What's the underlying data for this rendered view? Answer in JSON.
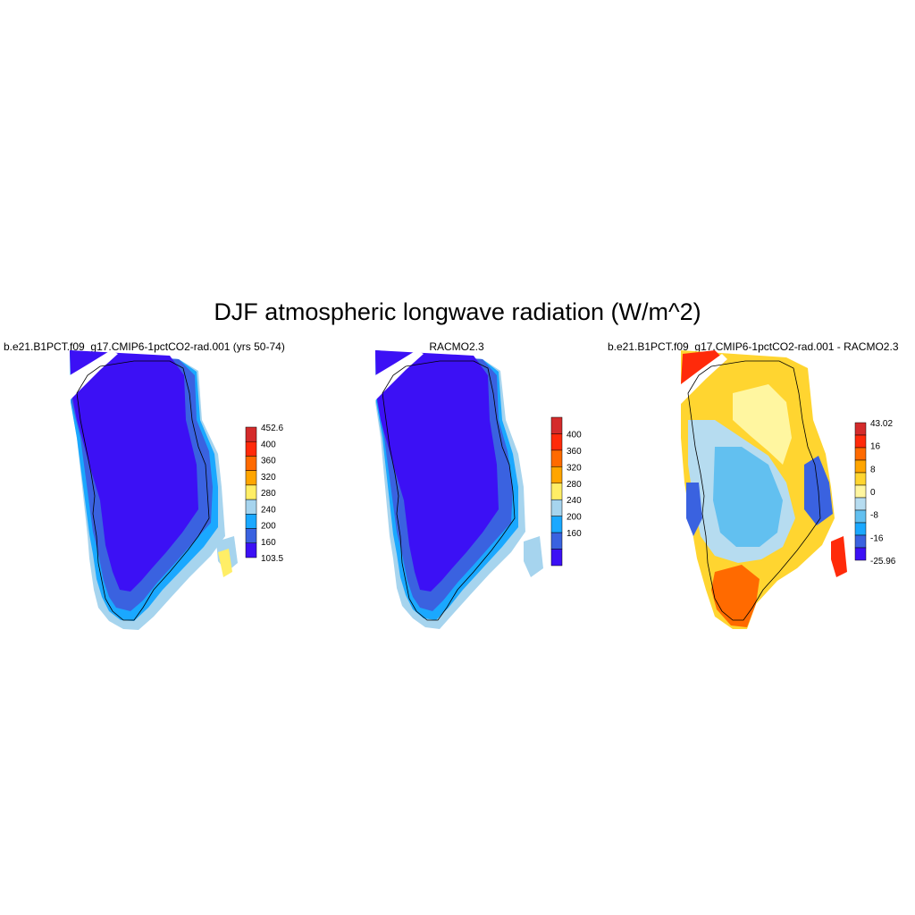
{
  "main_title": "DJF atmospheric longwave radiation (W/m^2)",
  "panels": [
    {
      "title": "b.e21.B1PCT.f09_g17.CMIP6-1pctCO2-rad.001 (yrs 50-74)",
      "colorbar": {
        "labels": [
          "452.6",
          "400",
          "360",
          "320",
          "280",
          "240",
          "200",
          "160",
          "103.5"
        ],
        "colors": [
          "#d42b2b",
          "#ff2a0a",
          "#ff6a00",
          "#ffa500",
          "#ffee66",
          "#a6d4ee",
          "#1aa8ff",
          "#3a62e0",
          "#3c10f5"
        ]
      }
    },
    {
      "title": "RACMO2.3",
      "colorbar": {
        "labels": [
          "400",
          "360",
          "320",
          "280",
          "240",
          "200",
          "160"
        ],
        "colors": [
          "#d42b2b",
          "#ff2a0a",
          "#ff6a00",
          "#ffa500",
          "#ffee66",
          "#a6d4ee",
          "#1aa8ff",
          "#3a62e0",
          "#3c10f5"
        ]
      }
    },
    {
      "title": "b.e21.B1PCT.f09_g17.CMIP6-1pctCO2-rad.001 - RACMO2.3",
      "colorbar": {
        "labels": [
          "43.02",
          "16",
          "8",
          "0",
          "-8",
          "-16",
          "-25.96"
        ],
        "colors": [
          "#d42b2b",
          "#ff2a0a",
          "#ff6a00",
          "#ffa500",
          "#ffd530",
          "#fff6a0",
          "#b6dcf0",
          "#62c0f0",
          "#1aa8ff",
          "#3a62e0",
          "#3c10f5"
        ]
      }
    }
  ]
}
